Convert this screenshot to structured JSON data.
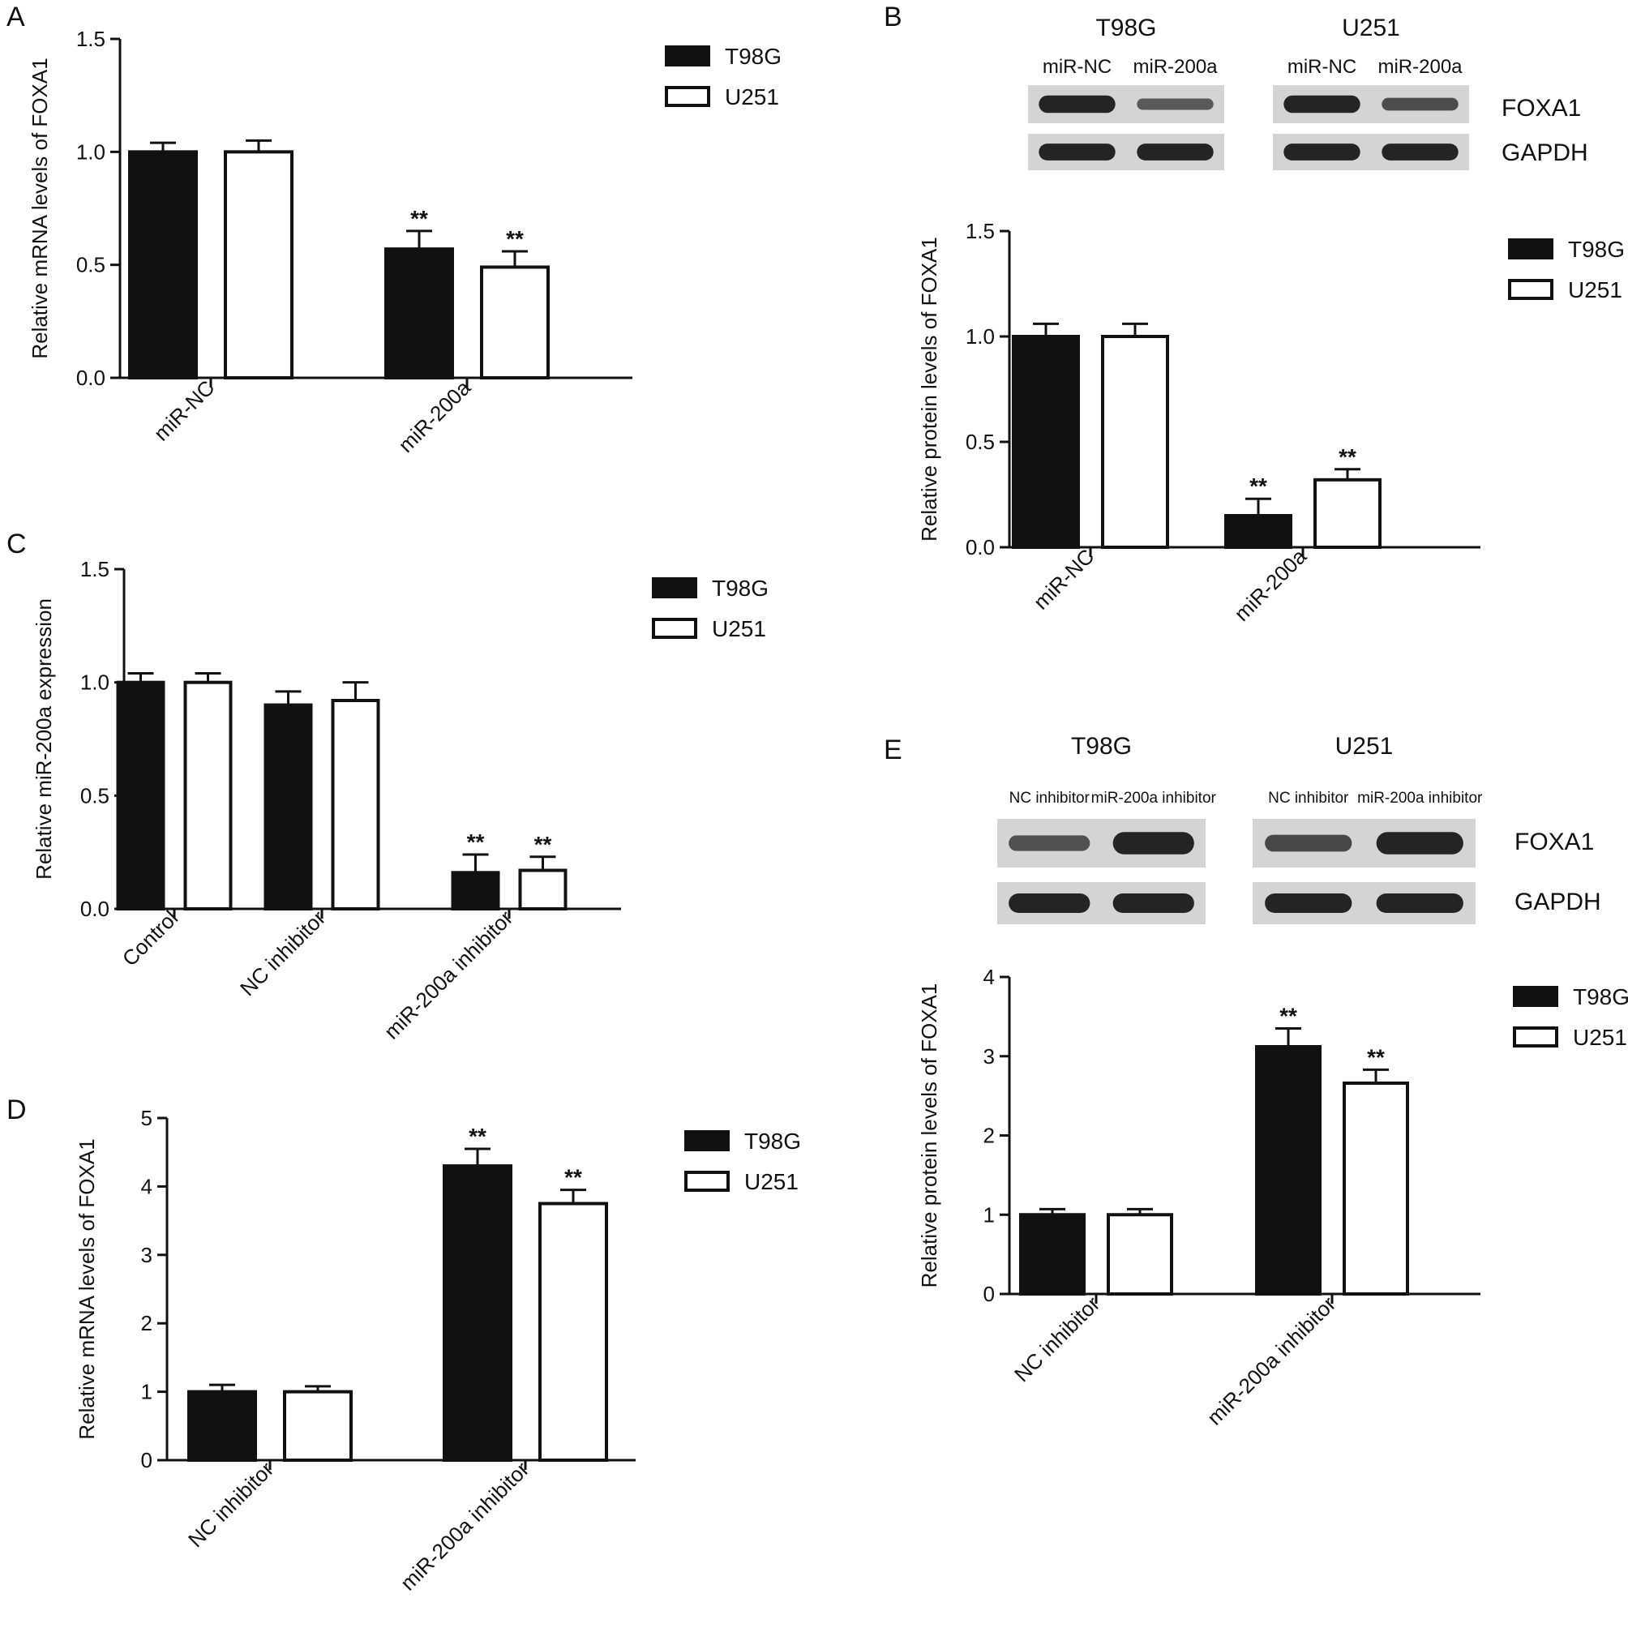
{
  "series_colors": {
    "T98G": "#111111",
    "U251": "#ffffff"
  },
  "chart_data": [
    {
      "panel": "A",
      "type": "bar",
      "categories": [
        "miR-NC",
        "miR-200a"
      ],
      "series": [
        {
          "name": "T98G",
          "values": [
            1.0,
            0.57
          ],
          "errors": [
            0.04,
            0.08
          ]
        },
        {
          "name": "U251",
          "values": [
            1.0,
            0.49
          ],
          "errors": [
            0.05,
            0.07
          ]
        }
      ],
      "significance": [
        [
          "",
          ""
        ],
        [
          "**",
          "**"
        ]
      ],
      "ylabel": "Relative mRNA levels of FOXA1",
      "ylim": [
        0,
        1.5
      ],
      "yticks": [
        0.0,
        0.5,
        1.0,
        1.5
      ],
      "ytick_labels": [
        "0.0",
        "0.5",
        "1.0",
        "1.5"
      ],
      "legend": [
        "T98G",
        "U251"
      ],
      "legend_position": "right"
    },
    {
      "panel": "B",
      "type": "bar",
      "categories": [
        "miR-NC",
        "miR-200a"
      ],
      "series": [
        {
          "name": "T98G",
          "values": [
            1.0,
            0.15
          ],
          "errors": [
            0.06,
            0.08
          ]
        },
        {
          "name": "U251",
          "values": [
            1.0,
            0.32
          ],
          "errors": [
            0.06,
            0.05
          ]
        }
      ],
      "significance": [
        [
          "",
          ""
        ],
        [
          "**",
          "**"
        ]
      ],
      "ylabel": "Relative protein levels of FOXA1",
      "ylim": [
        0,
        1.5
      ],
      "yticks": [
        0.0,
        0.5,
        1.0,
        1.5
      ],
      "ytick_labels": [
        "0.0",
        "0.5",
        "1.0",
        "1.5"
      ],
      "legend": [
        "T98G",
        "U251"
      ],
      "legend_position": "right"
    },
    {
      "panel": "C",
      "type": "bar",
      "categories": [
        "Control",
        "NC inhibitor",
        "miR-200a inhibitor"
      ],
      "series": [
        {
          "name": "T98G",
          "values": [
            1.0,
            0.9,
            0.16
          ],
          "errors": [
            0.04,
            0.06,
            0.08
          ]
        },
        {
          "name": "U251",
          "values": [
            1.0,
            0.92,
            0.17
          ],
          "errors": [
            0.04,
            0.08,
            0.06
          ]
        }
      ],
      "significance": [
        [
          "",
          ""
        ],
        [
          "",
          ""
        ],
        [
          "**",
          "**"
        ]
      ],
      "ylabel": "Relative miR-200a expression",
      "ylim": [
        0,
        1.5
      ],
      "yticks": [
        0.0,
        0.5,
        1.0,
        1.5
      ],
      "ytick_labels": [
        "0.0",
        "0.5",
        "1.0",
        "1.5"
      ],
      "legend": [
        "T98G",
        "U251"
      ],
      "legend_position": "right"
    },
    {
      "panel": "D",
      "type": "bar",
      "categories": [
        "NC inhibitor",
        "miR-200a inhibitor"
      ],
      "series": [
        {
          "name": "T98G",
          "values": [
            1.0,
            4.3
          ],
          "errors": [
            0.1,
            0.25
          ]
        },
        {
          "name": "U251",
          "values": [
            1.0,
            3.75
          ],
          "errors": [
            0.08,
            0.2
          ]
        }
      ],
      "significance": [
        [
          "",
          ""
        ],
        [
          "**",
          "**"
        ]
      ],
      "ylabel": "Relative mRNA levels of FOXA1",
      "ylim": [
        0,
        5
      ],
      "yticks": [
        0,
        1,
        2,
        3,
        4,
        5
      ],
      "ytick_labels": [
        "0",
        "1",
        "2",
        "3",
        "4",
        "5"
      ],
      "legend": [
        "T98G",
        "U251"
      ],
      "legend_position": "right"
    },
    {
      "panel": "E",
      "type": "bar",
      "categories": [
        "NC inhibitor",
        "miR-200a inhibitor"
      ],
      "series": [
        {
          "name": "T98G",
          "values": [
            1.0,
            3.12
          ],
          "errors": [
            0.07,
            0.23
          ]
        },
        {
          "name": "U251",
          "values": [
            1.0,
            2.66
          ],
          "errors": [
            0.07,
            0.17
          ]
        }
      ],
      "significance": [
        [
          "",
          ""
        ],
        [
          "**",
          "**"
        ]
      ],
      "ylabel": "Relative protein levels of FOXA1",
      "ylim": [
        0,
        4
      ],
      "yticks": [
        0,
        1,
        2,
        3,
        4
      ],
      "ytick_labels": [
        "0",
        "1",
        "2",
        "3",
        "4"
      ],
      "legend": [
        "T98G",
        "U251"
      ],
      "legend_position": "right"
    }
  ],
  "blots": [
    {
      "panel": "B",
      "groups": [
        {
          "title": "T98G",
          "lanes": [
            "miR-NC",
            "miR-200a"
          ]
        },
        {
          "title": "U251",
          "lanes": [
            "miR-NC",
            "miR-200a"
          ]
        }
      ],
      "proteins": [
        "FOXA1",
        "GAPDH"
      ],
      "band_intensity": [
        [
          [
            1.0,
            0.35
          ],
          [
            1.0,
            1.0
          ]
        ],
        [
          [
            1.0,
            0.5
          ],
          [
            1.0,
            1.0
          ]
        ]
      ]
    },
    {
      "panel": "E",
      "groups": [
        {
          "title": "T98G",
          "lanes": [
            "NC inhibitor",
            "miR-200a inhibitor"
          ]
        },
        {
          "title": "U251",
          "lanes": [
            "NC inhibitor",
            "miR-200a inhibitor"
          ]
        }
      ],
      "proteins": [
        "FOXA1",
        "GAPDH"
      ],
      "band_intensity": [
        [
          [
            0.45,
            1.0
          ],
          [
            1.0,
            1.0
          ]
        ],
        [
          [
            0.55,
            1.0
          ],
          [
            1.0,
            1.0
          ]
        ]
      ]
    }
  ]
}
